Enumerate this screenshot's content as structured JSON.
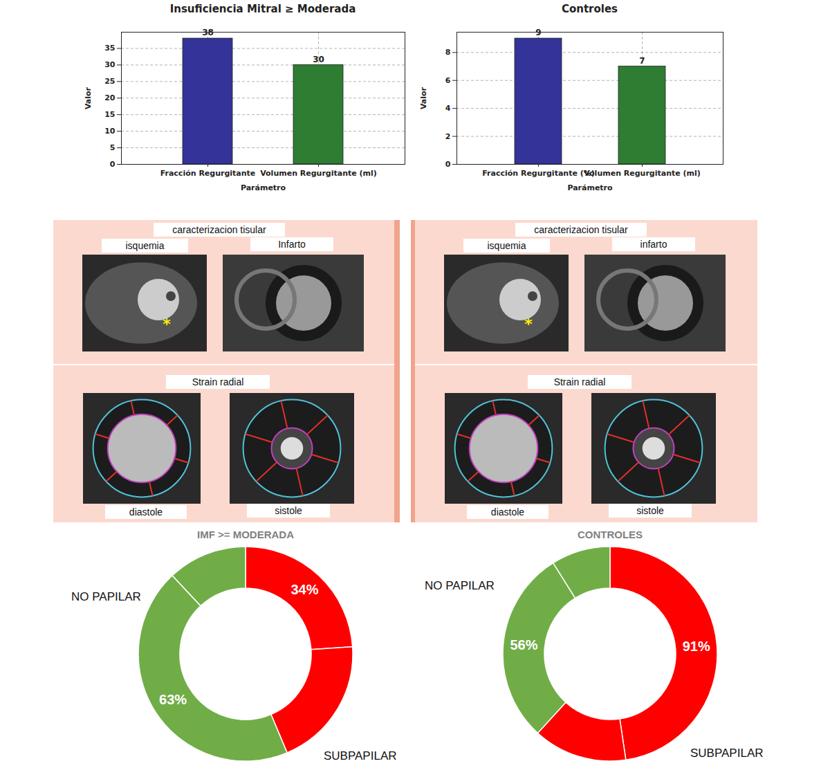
{
  "chart_data": [
    {
      "type": "bar",
      "title": "Insuficiencia Mitral ≥ Moderada",
      "x_label": "Parámetro",
      "y_label": "Valor",
      "categories": [
        "Fracción Regurgitante",
        "Volumen Regurgitante (ml)"
      ],
      "values": [
        38,
        30
      ],
      "colors": [
        "#333399",
        "#2e7d32"
      ],
      "ylim": [
        0,
        39.9
      ],
      "yticks": [
        0,
        5,
        10,
        15,
        20,
        25,
        30,
        35
      ],
      "grid": true,
      "data_labels": true
    },
    {
      "type": "bar",
      "title": "Controles",
      "x_label": "Parámetro",
      "y_label": "Valor",
      "categories": [
        "Fracción Regurgitante (%)",
        "Volumen Regurgitante (ml)"
      ],
      "values": [
        9,
        7
      ],
      "colors": [
        "#333399",
        "#2e7d32"
      ],
      "ylim": [
        0,
        9.45
      ],
      "yticks": [
        0,
        2,
        4,
        6,
        8
      ],
      "grid": true,
      "data_labels": true
    },
    {
      "type": "donut",
      "title": "IMF >= MODERADA",
      "categories": [
        "SUBPAPILAR",
        null,
        "NO PAPILAR",
        null
      ],
      "values": [
        34,
        28,
        63,
        17
      ],
      "value_labels": [
        "34%",
        null,
        "63%",
        null
      ],
      "colors": [
        "#ff0000",
        "#ff0000",
        "#70ad47",
        "#70ad47"
      ],
      "data_labels": true
    },
    {
      "type": "donut",
      "title": "CONTROLES",
      "categories": [
        "SUBPAPILAR",
        null,
        "NO PAPILAR",
        null
      ],
      "values": [
        91,
        27,
        56,
        17
      ],
      "value_labels": [
        "91%",
        null,
        "56%",
        null
      ],
      "colors": [
        "#ff0000",
        "#ff0000",
        "#70ad47",
        "#70ad47"
      ],
      "data_labels": true
    }
  ],
  "image_panels": [
    {
      "heading": "caracterizacion tisular",
      "images": [
        "isquemia",
        "Infarto"
      ],
      "annotation": "*",
      "strain_heading": "Strain radial",
      "strain_images": [
        "diastole",
        "sistole"
      ]
    },
    {
      "heading": "caracterizacion tisular",
      "images": [
        "isquemia",
        "infarto"
      ],
      "annotation": "*",
      "strain_heading": "Strain radial",
      "strain_images": [
        "diastole",
        "sistole"
      ]
    }
  ]
}
